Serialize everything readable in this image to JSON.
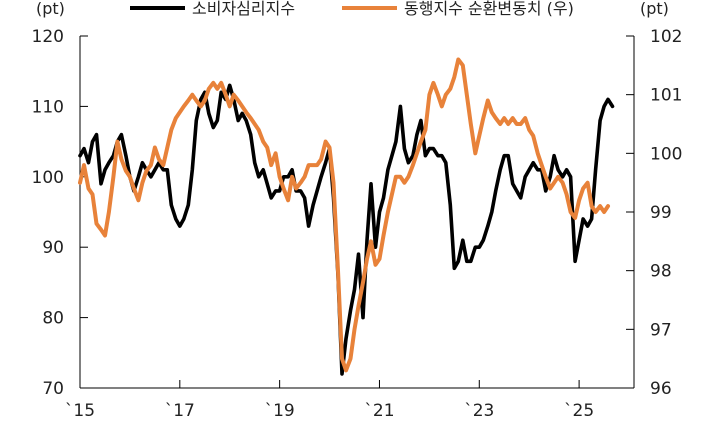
{
  "chart_data": {
    "type": "line",
    "title": "",
    "left_unit": "(pt)",
    "right_unit": "(pt)",
    "xlabel": "",
    "ylabel_left": "",
    "ylabel_right": "",
    "legend_placement": "top",
    "grid": false,
    "x_ticks": [
      {
        "label": "`15",
        "t": 2015.0
      },
      {
        "label": "`17",
        "t": 2017.0
      },
      {
        "label": "`19",
        "t": 2019.0
      },
      {
        "label": "`21",
        "t": 2021.0
      },
      {
        "label": "`23",
        "t": 2023.0
      },
      {
        "label": "`25",
        "t": 2025.0
      }
    ],
    "xlim": [
      2015.0,
      2026.1
    ],
    "y_left": {
      "lim": [
        70,
        120
      ],
      "ticks": [
        "70",
        "80",
        "90",
        "100",
        "110",
        "120"
      ]
    },
    "y_right": {
      "lim": [
        96,
        102
      ],
      "ticks": [
        "96",
        "97",
        "98",
        "99",
        "100",
        "101",
        "102"
      ]
    },
    "series": [
      {
        "name": "소비자심리지수",
        "axis": "left",
        "color": "#000000",
        "points": [
          [
            2015.0,
            103
          ],
          [
            2015.08,
            104
          ],
          [
            2015.17,
            102
          ],
          [
            2015.25,
            105
          ],
          [
            2015.33,
            106
          ],
          [
            2015.42,
            99
          ],
          [
            2015.5,
            101
          ],
          [
            2015.58,
            102
          ],
          [
            2015.67,
            103
          ],
          [
            2015.75,
            105
          ],
          [
            2015.83,
            106
          ],
          [
            2015.92,
            103
          ],
          [
            2016.0,
            100
          ],
          [
            2016.08,
            98
          ],
          [
            2016.17,
            100
          ],
          [
            2016.25,
            102
          ],
          [
            2016.33,
            101
          ],
          [
            2016.42,
            100
          ],
          [
            2016.5,
            101
          ],
          [
            2016.58,
            102
          ],
          [
            2016.67,
            101
          ],
          [
            2016.75,
            101
          ],
          [
            2016.83,
            96
          ],
          [
            2016.92,
            94
          ],
          [
            2017.0,
            93
          ],
          [
            2017.08,
            94
          ],
          [
            2017.17,
            96
          ],
          [
            2017.25,
            101
          ],
          [
            2017.33,
            108
          ],
          [
            2017.42,
            111
          ],
          [
            2017.5,
            112
          ],
          [
            2017.58,
            109
          ],
          [
            2017.67,
            107
          ],
          [
            2017.75,
            108
          ],
          [
            2017.83,
            112
          ],
          [
            2017.92,
            111
          ],
          [
            2018.0,
            113
          ],
          [
            2018.08,
            111
          ],
          [
            2018.17,
            108
          ],
          [
            2018.25,
            109
          ],
          [
            2018.33,
            108
          ],
          [
            2018.42,
            106
          ],
          [
            2018.5,
            102
          ],
          [
            2018.58,
            100
          ],
          [
            2018.67,
            101
          ],
          [
            2018.75,
            99
          ],
          [
            2018.83,
            97
          ],
          [
            2018.92,
            98
          ],
          [
            2019.0,
            98
          ],
          [
            2019.08,
            100
          ],
          [
            2019.17,
            100
          ],
          [
            2019.25,
            101
          ],
          [
            2019.33,
            98
          ],
          [
            2019.42,
            98
          ],
          [
            2019.5,
            97
          ],
          [
            2019.58,
            93
          ],
          [
            2019.67,
            96
          ],
          [
            2019.75,
            98
          ],
          [
            2019.83,
            100
          ],
          [
            2019.92,
            102
          ],
          [
            2020.0,
            104
          ],
          [
            2020.08,
            97
          ],
          [
            2020.17,
            86
          ],
          [
            2020.25,
            72
          ],
          [
            2020.33,
            77
          ],
          [
            2020.42,
            81
          ],
          [
            2020.5,
            84
          ],
          [
            2020.58,
            89
          ],
          [
            2020.67,
            80
          ],
          [
            2020.75,
            91
          ],
          [
            2020.83,
            99
          ],
          [
            2020.92,
            90
          ],
          [
            2021.0,
            95
          ],
          [
            2021.08,
            97
          ],
          [
            2021.17,
            101
          ],
          [
            2021.25,
            103
          ],
          [
            2021.33,
            105
          ],
          [
            2021.42,
            110
          ],
          [
            2021.5,
            104
          ],
          [
            2021.58,
            102
          ],
          [
            2021.67,
            103
          ],
          [
            2021.75,
            106
          ],
          [
            2021.83,
            108
          ],
          [
            2021.92,
            103
          ],
          [
            2022.0,
            104
          ],
          [
            2022.08,
            104
          ],
          [
            2022.17,
            103
          ],
          [
            2022.25,
            103
          ],
          [
            2022.33,
            102
          ],
          [
            2022.42,
            96
          ],
          [
            2022.5,
            87
          ],
          [
            2022.58,
            88
          ],
          [
            2022.67,
            91
          ],
          [
            2022.75,
            88
          ],
          [
            2022.83,
            88
          ],
          [
            2022.92,
            90
          ],
          [
            2023.0,
            90
          ],
          [
            2023.08,
            91
          ],
          [
            2023.17,
            93
          ],
          [
            2023.25,
            95
          ],
          [
            2023.33,
            98
          ],
          [
            2023.42,
            101
          ],
          [
            2023.5,
            103
          ],
          [
            2023.58,
            103
          ],
          [
            2023.67,
            99
          ],
          [
            2023.75,
            98
          ],
          [
            2023.83,
            97
          ],
          [
            2023.92,
            100
          ],
          [
            2024.0,
            101
          ],
          [
            2024.08,
            102
          ],
          [
            2024.17,
            101
          ],
          [
            2024.25,
            101
          ],
          [
            2024.33,
            98
          ],
          [
            2024.42,
            100
          ],
          [
            2024.5,
            103
          ],
          [
            2024.58,
            101
          ],
          [
            2024.67,
            100
          ],
          [
            2024.75,
            101
          ],
          [
            2024.83,
            100
          ],
          [
            2024.92,
            88
          ],
          [
            2025.0,
            91
          ],
          [
            2025.08,
            94
          ],
          [
            2025.17,
            93
          ],
          [
            2025.25,
            94
          ],
          [
            2025.33,
            101
          ],
          [
            2025.42,
            108
          ],
          [
            2025.5,
            110
          ],
          [
            2025.58,
            111
          ],
          [
            2025.67,
            110
          ]
        ]
      },
      {
        "name": "동행지수 순환변동치 (우)",
        "axis": "right",
        "color": "#E8823A",
        "points": [
          [
            2015.0,
            99.5
          ],
          [
            2015.08,
            99.8
          ],
          [
            2015.17,
            99.4
          ],
          [
            2015.25,
            99.3
          ],
          [
            2015.33,
            98.8
          ],
          [
            2015.42,
            98.7
          ],
          [
            2015.5,
            98.6
          ],
          [
            2015.58,
            99.0
          ],
          [
            2015.67,
            99.6
          ],
          [
            2015.75,
            100.2
          ],
          [
            2015.83,
            99.9
          ],
          [
            2015.92,
            99.7
          ],
          [
            2016.0,
            99.6
          ],
          [
            2016.08,
            99.4
          ],
          [
            2016.17,
            99.2
          ],
          [
            2016.25,
            99.5
          ],
          [
            2016.33,
            99.7
          ],
          [
            2016.42,
            99.8
          ],
          [
            2016.5,
            100.1
          ],
          [
            2016.58,
            99.9
          ],
          [
            2016.67,
            99.8
          ],
          [
            2016.75,
            100.1
          ],
          [
            2016.83,
            100.4
          ],
          [
            2016.92,
            100.6
          ],
          [
            2017.0,
            100.7
          ],
          [
            2017.08,
            100.8
          ],
          [
            2017.17,
            100.9
          ],
          [
            2017.25,
            101.0
          ],
          [
            2017.33,
            100.9
          ],
          [
            2017.42,
            100.8
          ],
          [
            2017.5,
            100.9
          ],
          [
            2017.58,
            101.1
          ],
          [
            2017.67,
            101.2
          ],
          [
            2017.75,
            101.1
          ],
          [
            2017.83,
            101.2
          ],
          [
            2017.92,
            101.0
          ],
          [
            2018.0,
            100.8
          ],
          [
            2018.08,
            101.0
          ],
          [
            2018.17,
            100.9
          ],
          [
            2018.25,
            100.8
          ],
          [
            2018.33,
            100.7
          ],
          [
            2018.42,
            100.6
          ],
          [
            2018.5,
            100.5
          ],
          [
            2018.58,
            100.4
          ],
          [
            2018.67,
            100.2
          ],
          [
            2018.75,
            100.1
          ],
          [
            2018.83,
            99.8
          ],
          [
            2018.92,
            100.0
          ],
          [
            2019.0,
            99.6
          ],
          [
            2019.08,
            99.4
          ],
          [
            2019.17,
            99.2
          ],
          [
            2019.25,
            99.6
          ],
          [
            2019.33,
            99.4
          ],
          [
            2019.42,
            99.5
          ],
          [
            2019.5,
            99.6
          ],
          [
            2019.58,
            99.8
          ],
          [
            2019.67,
            99.8
          ],
          [
            2019.75,
            99.8
          ],
          [
            2019.83,
            99.9
          ],
          [
            2019.92,
            100.2
          ],
          [
            2020.0,
            100.1
          ],
          [
            2020.08,
            99.5
          ],
          [
            2020.17,
            98.0
          ],
          [
            2020.25,
            96.5
          ],
          [
            2020.33,
            96.3
          ],
          [
            2020.42,
            96.5
          ],
          [
            2020.5,
            97.0
          ],
          [
            2020.58,
            97.4
          ],
          [
            2020.67,
            97.8
          ],
          [
            2020.75,
            98.2
          ],
          [
            2020.83,
            98.5
          ],
          [
            2020.92,
            98.1
          ],
          [
            2021.0,
            98.2
          ],
          [
            2021.08,
            98.6
          ],
          [
            2021.17,
            99.0
          ],
          [
            2021.25,
            99.3
          ],
          [
            2021.33,
            99.6
          ],
          [
            2021.42,
            99.6
          ],
          [
            2021.5,
            99.5
          ],
          [
            2021.58,
            99.6
          ],
          [
            2021.67,
            99.8
          ],
          [
            2021.75,
            100.0
          ],
          [
            2021.83,
            100.2
          ],
          [
            2021.92,
            100.4
          ],
          [
            2022.0,
            101.0
          ],
          [
            2022.08,
            101.2
          ],
          [
            2022.17,
            101.0
          ],
          [
            2022.25,
            100.8
          ],
          [
            2022.33,
            101.0
          ],
          [
            2022.42,
            101.1
          ],
          [
            2022.5,
            101.3
          ],
          [
            2022.58,
            101.6
          ],
          [
            2022.67,
            101.5
          ],
          [
            2022.75,
            101.0
          ],
          [
            2022.83,
            100.5
          ],
          [
            2022.92,
            100.0
          ],
          [
            2023.0,
            100.3
          ],
          [
            2023.08,
            100.6
          ],
          [
            2023.17,
            100.9
          ],
          [
            2023.25,
            100.7
          ],
          [
            2023.33,
            100.6
          ],
          [
            2023.42,
            100.5
          ],
          [
            2023.5,
            100.6
          ],
          [
            2023.58,
            100.5
          ],
          [
            2023.67,
            100.6
          ],
          [
            2023.75,
            100.5
          ],
          [
            2023.83,
            100.5
          ],
          [
            2023.92,
            100.6
          ],
          [
            2024.0,
            100.4
          ],
          [
            2024.08,
            100.3
          ],
          [
            2024.17,
            100.0
          ],
          [
            2024.25,
            99.8
          ],
          [
            2024.33,
            99.6
          ],
          [
            2024.42,
            99.4
          ],
          [
            2024.5,
            99.5
          ],
          [
            2024.58,
            99.6
          ],
          [
            2024.67,
            99.5
          ],
          [
            2024.75,
            99.3
          ],
          [
            2024.83,
            99.0
          ],
          [
            2024.92,
            98.9
          ],
          [
            2025.0,
            99.2
          ],
          [
            2025.08,
            99.4
          ],
          [
            2025.17,
            99.5
          ],
          [
            2025.25,
            99.1
          ],
          [
            2025.33,
            99.0
          ],
          [
            2025.42,
            99.1
          ],
          [
            2025.5,
            99.0
          ],
          [
            2025.58,
            99.1
          ]
        ]
      }
    ]
  }
}
